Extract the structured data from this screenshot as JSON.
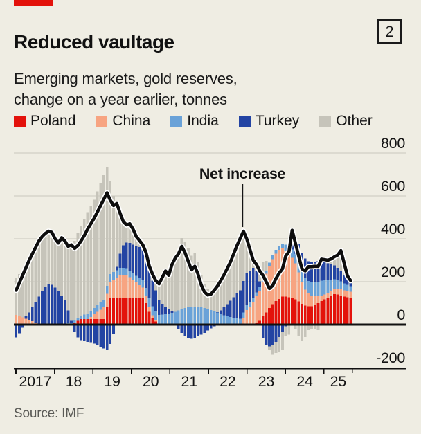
{
  "header": {
    "title": "Reduced vaultage",
    "index_badge": "2",
    "subtitle_line1": "Emerging markets, gold reserves,",
    "subtitle_line2": "change on a year earlier, tonnes"
  },
  "legend": [
    {
      "label": "Poland",
      "color": "#e3120b"
    },
    {
      "label": "China",
      "color": "#f7a481"
    },
    {
      "label": "India",
      "color": "#6aa2d8"
    },
    {
      "label": "Turkey",
      "color": "#2344a3"
    },
    {
      "label": "Other",
      "color": "#c6c4ba"
    }
  ],
  "annotation": {
    "label": "Net increase"
  },
  "source": "Source: IMF",
  "colors": {
    "background": "#efede3",
    "brand_red": "#e3120b",
    "grid": "#c9c7bd",
    "ink": "#141414",
    "net_line": "#0d0d0d",
    "net_line_casing": "#ffffff",
    "source_text": "#5a5a56"
  },
  "chart_data": {
    "type": "bar",
    "subtype": "stacked-monthly-bars-with-net-line",
    "unit": "tonnes, change on a year earlier",
    "frequency": "monthly",
    "x_start": "2017-01",
    "x_end": "2025-08",
    "x_tick_labels": [
      "2017",
      "18",
      "19",
      "20",
      "21",
      "22",
      "23",
      "24",
      "25"
    ],
    "y_ticks": [
      800,
      600,
      400,
      200,
      0,
      -200
    ],
    "ylim": [
      -200,
      800
    ],
    "grid": "horizontal",
    "legend_position": "top",
    "net_line_label": "Net increase",
    "net_line_is_sum_of_series": true,
    "series": [
      {
        "name": "Poland",
        "color": "#e3120b",
        "values": [
          0,
          0,
          0,
          0,
          0,
          0,
          0,
          0,
          0,
          0,
          0,
          0,
          0,
          0,
          0,
          0,
          0,
          0,
          10,
          18,
          26,
          26,
          26,
          26,
          26,
          26,
          26,
          26,
          80,
          126,
          126,
          126,
          126,
          126,
          126,
          126,
          126,
          126,
          126,
          126,
          100,
          60,
          30,
          15,
          0,
          0,
          0,
          0,
          0,
          0,
          0,
          0,
          0,
          0,
          0,
          0,
          0,
          0,
          0,
          0,
          0,
          0,
          0,
          0,
          0,
          0,
          0,
          0,
          0,
          0,
          0,
          5,
          5,
          5,
          8,
          18,
          38,
          57,
          77,
          95,
          110,
          120,
          130,
          130,
          128,
          124,
          118,
          108,
          96,
          88,
          85,
          86,
          92,
          100,
          110,
          118,
          126,
          134,
          142,
          140,
          136,
          130,
          127,
          124
        ]
      },
      {
        "name": "China",
        "color": "#f7a481",
        "values": [
          45,
          40,
          34,
          28,
          22,
          16,
          10,
          5,
          2,
          0,
          0,
          0,
          0,
          0,
          0,
          0,
          0,
          0,
          0,
          0,
          0,
          0,
          0,
          10,
          22,
          33,
          44,
          54,
          64,
          74,
          84,
          94,
          106,
          106,
          106,
          95,
          82,
          70,
          58,
          46,
          34,
          24,
          14,
          6,
          0,
          0,
          0,
          0,
          0,
          0,
          0,
          0,
          0,
          0,
          0,
          0,
          0,
          0,
          0,
          0,
          0,
          0,
          0,
          0,
          0,
          0,
          0,
          0,
          0,
          0,
          32,
          62,
          77,
          102,
          125,
          140,
          160,
          180,
          195,
          210,
          220,
          228,
          225,
          215,
          205,
          188,
          168,
          135,
          100,
          75,
          60,
          48,
          40,
          32,
          26,
          22,
          20,
          22,
          25,
          28,
          30,
          30,
          30,
          30
        ]
      },
      {
        "name": "India",
        "color": "#6aa2d8",
        "values": [
          0,
          0,
          0,
          0,
          0,
          0,
          0,
          0,
          0,
          0,
          0,
          0,
          0,
          0,
          0,
          3,
          6,
          8,
          10,
          13,
          16,
          20,
          24,
          28,
          30,
          32,
          34,
          35,
          36,
          36,
          35,
          34,
          33,
          32,
          31,
          30,
          30,
          31,
          33,
          35,
          37,
          39,
          41,
          43,
          45,
          47,
          49,
          51,
          55,
          60,
          66,
          72,
          77,
          80,
          82,
          83,
          82,
          80,
          77,
          73,
          68,
          62,
          56,
          50,
          44,
          39,
          35,
          32,
          29,
          27,
          25,
          23,
          21,
          19,
          17,
          16,
          15,
          15,
          16,
          17,
          18,
          20,
          23,
          27,
          32,
          38,
          44,
          50,
          52,
          55,
          58,
          62,
          65,
          68,
          69,
          69,
          60,
          52,
          45,
          40,
          36,
          32,
          28,
          25
        ]
      },
      {
        "name": "Turkey",
        "color": "#2344a3",
        "values": [
          -60,
          -40,
          -15,
          10,
          35,
          65,
          95,
          125,
          155,
          175,
          190,
          185,
          172,
          155,
          135,
          110,
          60,
          10,
          -35,
          -60,
          -72,
          -78,
          -80,
          -82,
          -88,
          -96,
          -105,
          -112,
          -120,
          -90,
          -45,
          15,
          65,
          105,
          120,
          130,
          135,
          140,
          145,
          150,
          155,
          140,
          120,
          95,
          70,
          50,
          35,
          22,
          10,
          -5,
          -20,
          -38,
          -52,
          -63,
          -66,
          -62,
          -55,
          -47,
          -38,
          -28,
          -18,
          -8,
          2,
          16,
          36,
          56,
          76,
          96,
          116,
          132,
          146,
          152,
          148,
          138,
          98,
          28,
          -62,
          -96,
          -102,
          -96,
          -80,
          -58,
          -32,
          -8,
          22,
          46,
          70,
          82,
          88,
          90,
          92,
          94,
          95,
          96,
          95,
          94,
          80,
          72,
          64,
          56,
          48,
          40,
          32,
          26
        ]
      },
      {
        "name": "Other",
        "color": "#c6c4ba",
        "values": [
          175,
          195,
          211,
          227,
          243,
          249,
          255,
          260,
          253,
          250,
          245,
          245,
          228,
          225,
          270,
          277,
          299,
          354,
          370,
          397,
          420,
          447,
          475,
          488,
          505,
          530,
          556,
          582,
          555,
          434,
          355,
          296,
          190,
          111,
          82,
          89,
          72,
          43,
          30,
          15,
          10,
          10,
          30,
          46,
          75,
          123,
          166,
          157,
          215,
          255,
          284,
          331,
          310,
          278,
          239,
          251,
          208,
          152,
          113,
          93,
          92,
          106,
          122,
          139,
          152,
          167,
          181,
          202,
          223,
          243,
          232,
          158,
          99,
          36,
          32,
          48,
          79,
          44,
          -18,
          -44,
          -53,
          -70,
          -86,
          -44,
          -47,
          44,
          -20,
          -55,
          -76,
          -58,
          -25,
          -20,
          -20,
          -25,
          5,
          0,
          14,
          26,
          40,
          60,
          95,
          55,
          10,
          0
        ]
      }
    ]
  }
}
